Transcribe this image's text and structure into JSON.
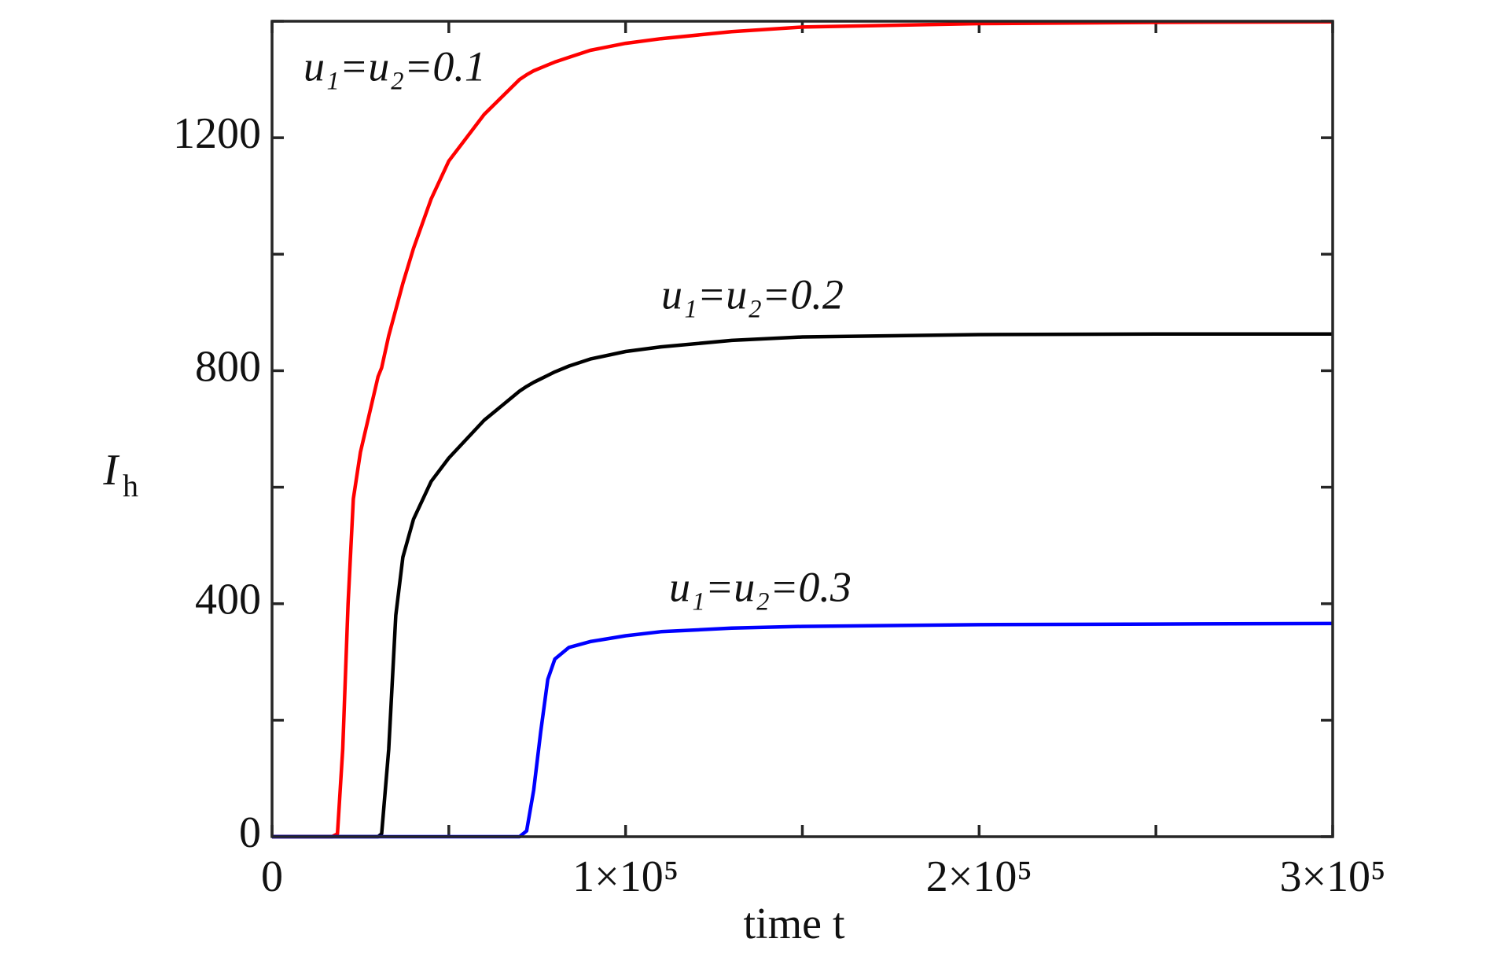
{
  "chart_data": {
    "type": "line",
    "xlabel": "time t",
    "ylabel": {
      "main": "I",
      "sub": "h"
    },
    "xlim": [
      0,
      300000
    ],
    "ylim": [
      0,
      1400
    ],
    "xticks": [
      0,
      {
        "value": 100000,
        "label": "1×10⁵"
      },
      {
        "value": 200000,
        "label": "2×10⁵"
      },
      {
        "value": 300000,
        "label": "3×10⁵"
      }
    ],
    "xminor": [
      50000,
      150000,
      250000
    ],
    "yticks": [
      0,
      400,
      800,
      1200
    ],
    "yminor": [
      200,
      600,
      1000,
      1400
    ],
    "x": [
      0,
      10000,
      17000,
      18500,
      20000,
      21500,
      23000,
      25000,
      30000,
      31000,
      33000,
      35000,
      37000,
      40000,
      45000,
      50000,
      60000,
      70000,
      72000,
      74000,
      76000,
      78000,
      80000,
      84000,
      90000,
      100000,
      110000,
      130000,
      150000,
      200000,
      250000,
      300000
    ],
    "series": [
      {
        "name": "u₁=u₂=0.1",
        "color": "#ff0000",
        "values": [
          0,
          0,
          0,
          5,
          150,
          400,
          580,
          660,
          790,
          805,
          860,
          905,
          950,
          1010,
          1095,
          1160,
          1240,
          1300,
          1308,
          1315,
          1320,
          1325,
          1330,
          1338,
          1350,
          1362,
          1370,
          1382,
          1390,
          1396,
          1398,
          1399
        ]
      },
      {
        "name": "u₁=u₂=0.2",
        "color": "#000000",
        "values": [
          0,
          0,
          0,
          0,
          0,
          0,
          0,
          0,
          0,
          5,
          150,
          380,
          480,
          545,
          610,
          650,
          715,
          765,
          773,
          780,
          786,
          792,
          798,
          808,
          820,
          833,
          841,
          852,
          858,
          862,
          863,
          863
        ]
      },
      {
        "name": "u₁=u₂=0.3",
        "color": "#0000ff",
        "values": [
          0,
          0,
          0,
          0,
          0,
          0,
          0,
          0,
          0,
          0,
          0,
          0,
          0,
          0,
          0,
          0,
          0,
          0,
          10,
          80,
          180,
          270,
          305,
          325,
          335,
          345,
          352,
          358,
          361,
          364,
          365,
          366
        ]
      }
    ]
  }
}
